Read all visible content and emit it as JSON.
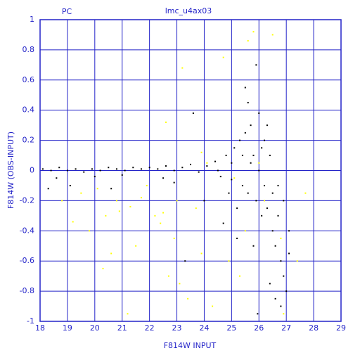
{
  "chart_data": {
    "type": "scatter",
    "title": "lmc_u4ax03",
    "subtitle": "PC",
    "x_label": "F814W INPUT",
    "y_label": "F814W (OBS-INPUT)",
    "xlim": [
      18,
      29
    ],
    "ylim": [
      -1,
      1
    ],
    "xticks": [
      18,
      19,
      20,
      21,
      22,
      23,
      24,
      25,
      26,
      27,
      28,
      29
    ],
    "yticks": [
      -1,
      -0.8,
      -0.6,
      -0.4,
      -0.2,
      0,
      0.2,
      0.4,
      0.6,
      0.8,
      1
    ],
    "grid": true,
    "axis_color": "#2323c8",
    "series": [
      {
        "color": "#000000",
        "x": [
          18.1,
          18.4,
          18.7,
          19.0,
          19.3,
          19.6,
          19.9,
          20.2,
          20.5,
          20.8,
          21.1,
          21.4,
          21.7,
          22.0,
          22.3,
          22.6,
          22.9,
          23.2,
          23.5,
          23.8,
          24.1,
          24.4,
          24.6,
          24.8,
          25.0,
          25.1,
          25.3,
          25.4,
          25.5,
          25.6,
          25.7,
          25.8,
          25.9,
          26.0,
          26.1,
          26.2,
          26.3,
          26.4,
          26.5,
          26.6,
          26.7,
          26.8,
          26.9,
          27.0,
          26.8,
          27.1,
          26.4,
          25.8,
          25.2,
          24.7,
          24.0,
          23.3,
          22.9,
          20.6,
          19.1,
          23.6,
          25.9,
          25.5,
          26.0,
          25.7,
          26.2,
          25.4,
          25.0,
          24.5,
          26.3,
          25.95,
          26.5,
          26.9,
          27.1,
          26.6,
          25.6,
          25.2,
          26.1,
          24.9,
          26.7,
          22.5,
          21.0,
          18.3,
          18.6,
          20.0
        ],
        "values": [
          0.01,
          0.0,
          0.02,
          0.0,
          0.01,
          -0.01,
          0.01,
          0.0,
          0.02,
          0.01,
          0.0,
          0.02,
          0.01,
          0.02,
          0.01,
          0.03,
          0.0,
          0.02,
          0.04,
          -0.01,
          0.03,
          0.06,
          -0.04,
          0.1,
          -0.06,
          0.15,
          0.2,
          -0.1,
          0.25,
          -0.15,
          0.3,
          0.1,
          -0.2,
          0.38,
          -0.3,
          0.2,
          -0.25,
          0.1,
          -0.4,
          -0.5,
          -0.3,
          -0.6,
          -0.7,
          -0.8,
          -0.9,
          -0.55,
          -0.75,
          -0.5,
          -0.45,
          -0.35,
          -0.2,
          -0.6,
          -0.08,
          -0.12,
          -0.1,
          0.38,
          0.7,
          0.55,
          0.0,
          0.05,
          -0.1,
          0.1,
          0.05,
          0.0,
          0.3,
          -0.95,
          -0.15,
          -0.2,
          -0.4,
          -0.85,
          0.45,
          -0.25,
          0.15,
          -0.15,
          -0.1,
          -0.05,
          -0.03,
          -0.12,
          -0.05,
          -0.04
        ]
      },
      {
        "color": "#ffff00",
        "x": [
          25.8,
          26.5,
          23.2,
          24.7,
          25.6,
          22.6,
          23.9,
          19.5,
          20.1,
          20.8,
          21.3,
          21.7,
          22.2,
          22.5,
          22.4,
          21.9,
          20.4,
          19.8,
          19.2,
          20.6,
          20.3,
          21.2,
          22.7,
          23.1,
          23.4,
          23.9,
          24.3,
          24.9,
          25.3,
          25.5,
          26.2,
          26.8,
          27.4,
          27.7,
          22.9,
          23.7,
          18.8,
          24.1,
          25.1,
          26.0,
          23.0,
          21.5,
          20.9,
          26.9
        ],
        "values": [
          0.92,
          0.9,
          0.68,
          0.75,
          0.86,
          0.32,
          0.12,
          -0.15,
          -0.12,
          -0.2,
          -0.24,
          -0.18,
          -0.3,
          -0.28,
          -0.35,
          -0.1,
          -0.3,
          -0.4,
          -0.34,
          -0.55,
          -0.65,
          -0.95,
          -0.7,
          -0.75,
          -0.85,
          -0.55,
          -0.9,
          -0.6,
          -0.7,
          -0.4,
          -0.2,
          -0.45,
          -0.6,
          -0.15,
          -0.45,
          -0.25,
          -0.2,
          0.05,
          -0.05,
          0.05,
          -0.2,
          -0.5,
          -0.27,
          -0.95
        ]
      }
    ]
  }
}
